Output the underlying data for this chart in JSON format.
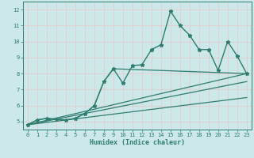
{
  "xlabel": "Humidex (Indice chaleur)",
  "xlim": [
    -0.5,
    23.5
  ],
  "ylim": [
    4.5,
    12.5
  ],
  "xticks": [
    0,
    1,
    2,
    3,
    4,
    5,
    6,
    7,
    8,
    9,
    10,
    11,
    12,
    13,
    14,
    15,
    16,
    17,
    18,
    19,
    20,
    21,
    22,
    23
  ],
  "yticks": [
    5,
    6,
    7,
    8,
    9,
    10,
    11,
    12
  ],
  "bg_color": "#cce8e8",
  "grid_color": "#e8c8c8",
  "line_color": "#2e7d6e",
  "series": [
    {
      "x": [
        0,
        1,
        2,
        3,
        4,
        5,
        6,
        7,
        8,
        9,
        10,
        11,
        12,
        13,
        14,
        15,
        16,
        17,
        18,
        19,
        20,
        21,
        22,
        23
      ],
      "y": [
        4.8,
        5.1,
        5.2,
        5.15,
        5.1,
        5.2,
        5.5,
        6.0,
        7.5,
        8.3,
        7.4,
        8.5,
        8.55,
        9.5,
        9.8,
        11.9,
        11.0,
        10.4,
        9.5,
        9.5,
        8.2,
        10.0,
        9.1,
        8.0
      ],
      "marker": "*",
      "markersize": 3.5,
      "lw": 1.0
    },
    {
      "x": [
        0,
        1,
        2,
        3,
        4,
        5,
        6,
        7,
        8,
        9,
        23
      ],
      "y": [
        4.8,
        5.1,
        5.2,
        5.15,
        5.1,
        5.2,
        5.5,
        6.0,
        7.5,
        8.3,
        8.0
      ],
      "marker": null,
      "lw": 0.9
    },
    {
      "x": [
        0,
        23
      ],
      "y": [
        4.8,
        8.0
      ],
      "marker": null,
      "lw": 0.9
    },
    {
      "x": [
        0,
        23
      ],
      "y": [
        4.8,
        7.5
      ],
      "marker": null,
      "lw": 0.9
    },
    {
      "x": [
        0,
        23
      ],
      "y": [
        4.8,
        6.5
      ],
      "marker": null,
      "lw": 0.9
    }
  ]
}
